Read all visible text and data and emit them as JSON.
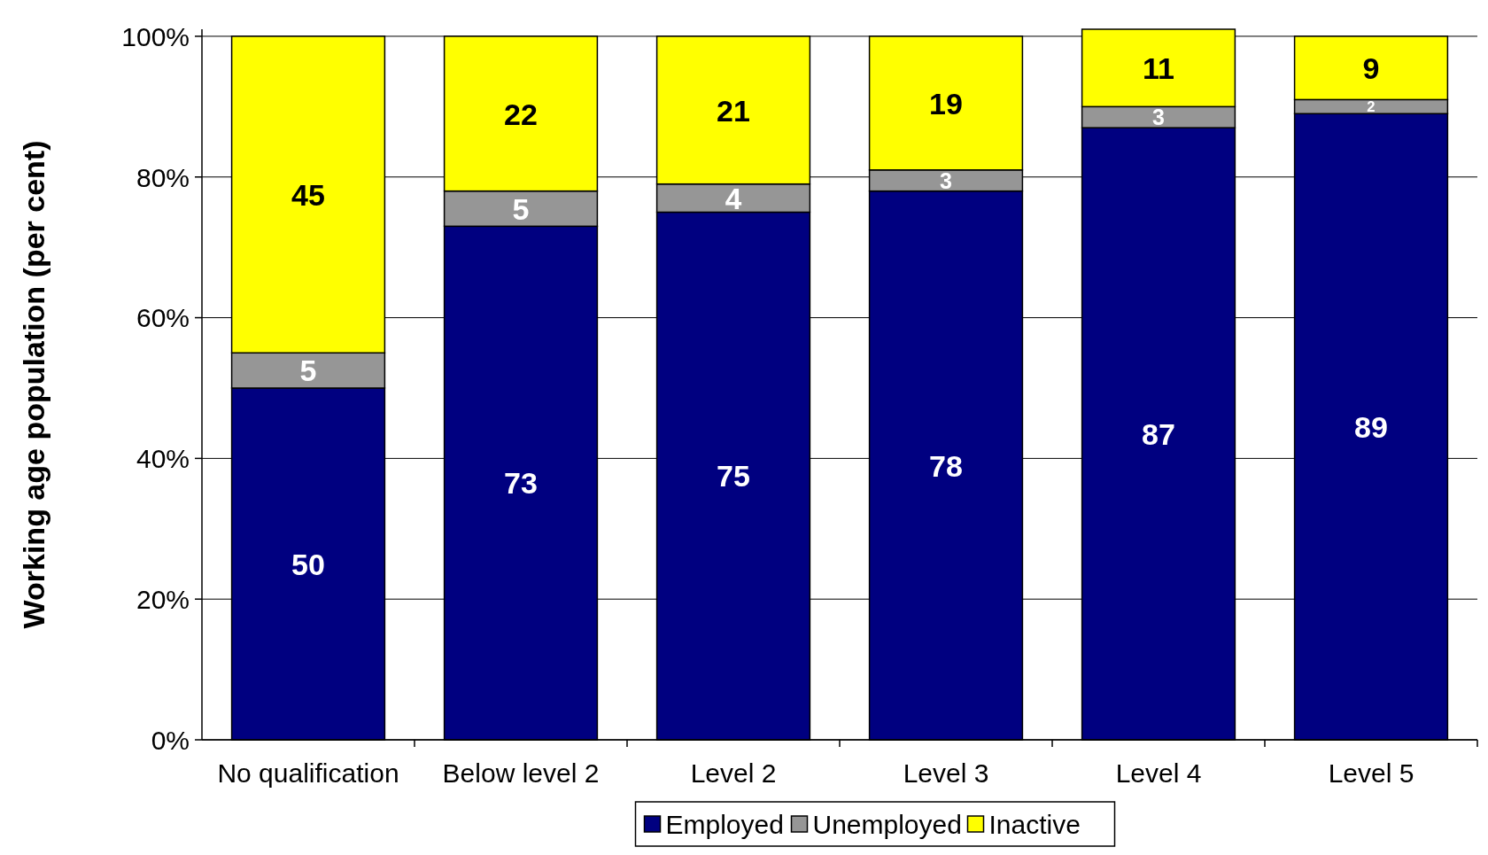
{
  "chart_data": {
    "type": "bar",
    "stacked": true,
    "ylabel": "Working age population (per cent)",
    "categories": [
      "No qualification",
      "Below level 2",
      "Level 2",
      "Level 3",
      "Level 4",
      "Level 5"
    ],
    "series": [
      {
        "name": "Employed",
        "color": "#000080",
        "values": [
          50,
          73,
          75,
          78,
          87,
          89
        ],
        "value_labels": [
          "50",
          "73",
          "75",
          "78",
          "87",
          "89"
        ]
      },
      {
        "name": "Unemployed",
        "color": "#969696",
        "values": [
          5,
          5,
          4,
          3,
          3,
          2
        ],
        "value_labels": [
          "5",
          "5",
          "4",
          "3",
          "3",
          "2"
        ]
      },
      {
        "name": "Inactive",
        "color": "#ffff00",
        "values": [
          45,
          22,
          21,
          19,
          11,
          9
        ],
        "value_labels": [
          "45",
          "22",
          "21",
          "19",
          "11",
          "9"
        ]
      }
    ],
    "ylim": [
      0,
      101
    ],
    "yticks": [
      {
        "value": 0,
        "label": "0%"
      },
      {
        "value": 20,
        "label": "20%"
      },
      {
        "value": 40,
        "label": "40%"
      },
      {
        "value": 60,
        "label": "60%"
      },
      {
        "value": 80,
        "label": "80%"
      },
      {
        "value": 100,
        "label": "100%"
      }
    ],
    "grid": "y",
    "legend": "bottom"
  }
}
